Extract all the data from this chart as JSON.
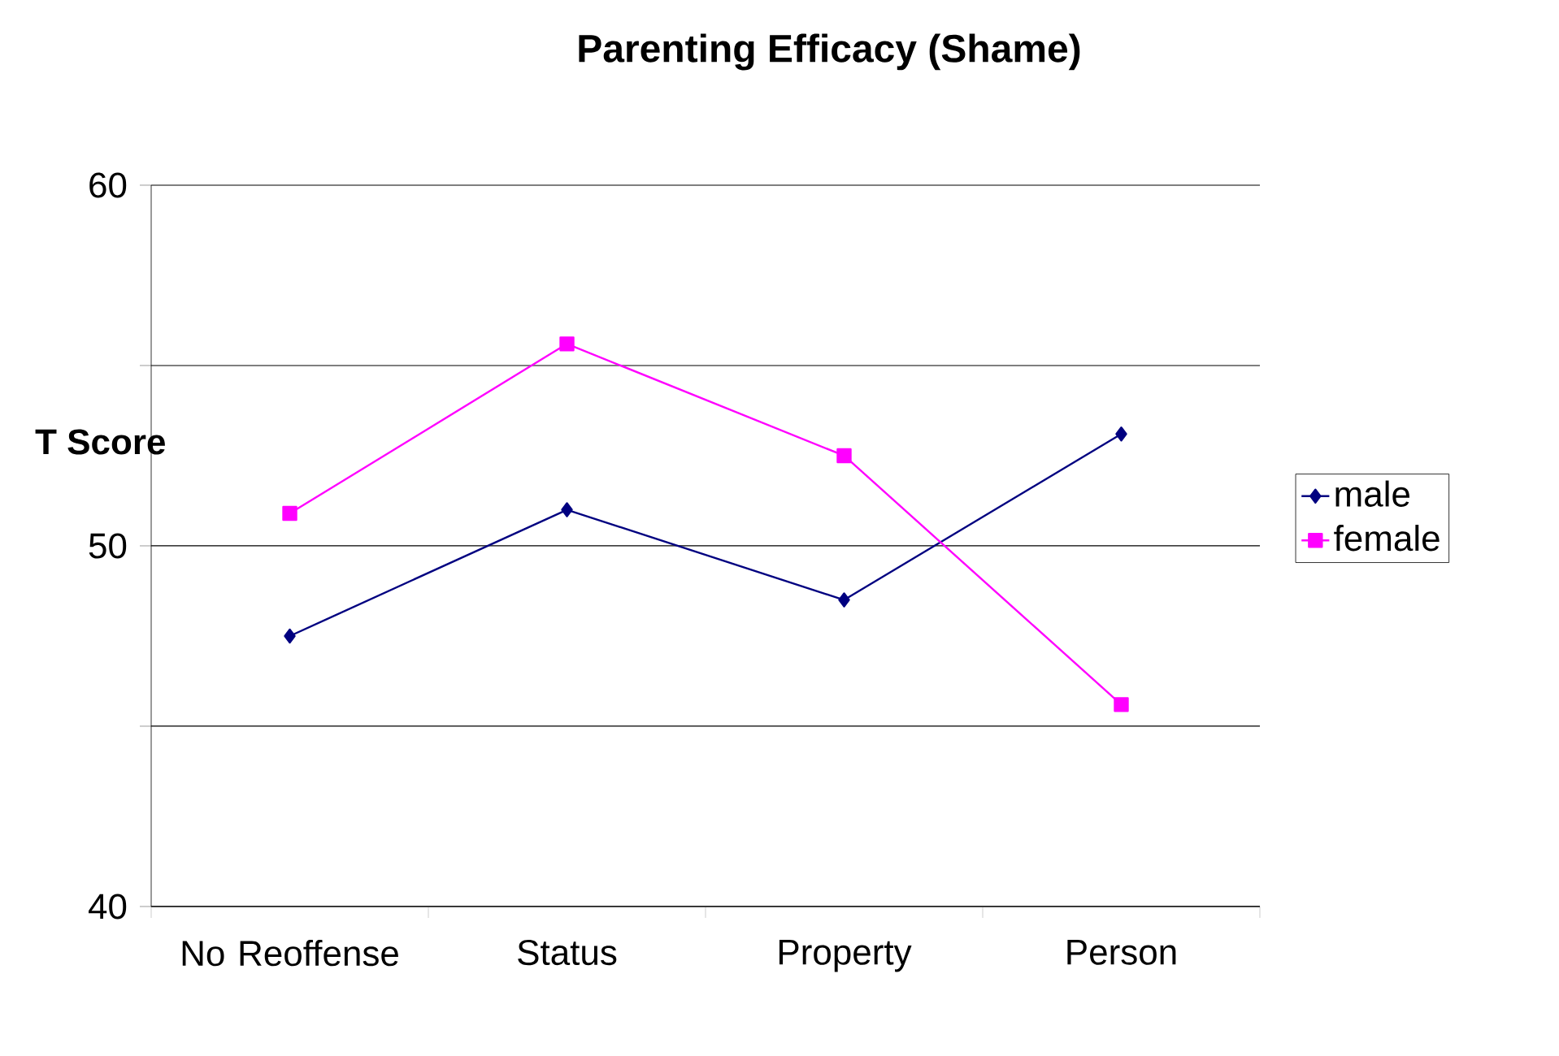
{
  "chart_data": {
    "type": "line",
    "title": "Parenting  Efficacy (Shame)",
    "ylabel": "T Score",
    "categories": [
      "No Reoffense",
      "Status",
      "Property",
      "Person"
    ],
    "series": [
      {
        "name": "male",
        "color": "#000080",
        "marker": "diamond",
        "values": [
          47.5,
          51.0,
          48.5,
          53.1
        ]
      },
      {
        "name": "female",
        "color": "#ff00ff",
        "marker": "square",
        "values": [
          50.9,
          55.6,
          52.5,
          45.6
        ]
      }
    ],
    "ylim": [
      40,
      60
    ],
    "yticks": [
      40,
      {
        "value": 45,
        "label": null
      },
      50,
      {
        "value": 55,
        "label": null
      },
      60
    ],
    "grid": "y",
    "legend": "right",
    "line_style": "solid"
  }
}
